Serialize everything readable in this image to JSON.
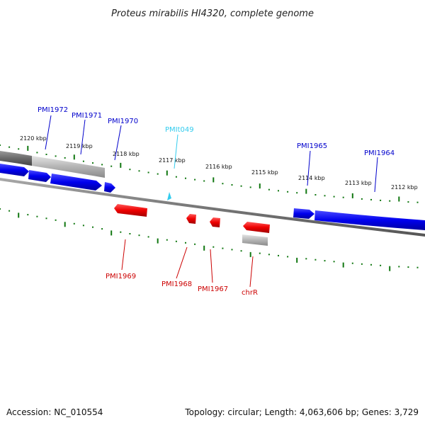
{
  "title": "Proteus mirabilis HI4320, complete genome",
  "footer": {
    "accession": "Accession: NC_010554",
    "summary": "Topology: circular; Length: 4,063,606 bp; Genes: 3,729"
  },
  "colors": {
    "forward_gene": "#0000ee",
    "reverse_gene": "#ee0000",
    "trna": "#33ccee",
    "tick": "#117711",
    "backbone": "#777777"
  },
  "scale": {
    "unit": "kbp",
    "major_ticks": [
      {
        "pos": 2120,
        "label": "2120 kbp"
      },
      {
        "pos": 2119,
        "label": "2119 kbp"
      },
      {
        "pos": 2118,
        "label": "2118 kbp"
      },
      {
        "pos": 2117,
        "label": "2117 kbp"
      },
      {
        "pos": 2116,
        "label": "2116 kbp"
      },
      {
        "pos": 2115,
        "label": "2115 kbp"
      },
      {
        "pos": 2114,
        "label": "2114 kbp"
      },
      {
        "pos": 2113,
        "label": "2113 kbp"
      },
      {
        "pos": 2112,
        "label": "2112 kbp"
      }
    ]
  },
  "genes": [
    {
      "name": "PMI1972",
      "label": "PMI1972",
      "strand": "forward",
      "type": "gene"
    },
    {
      "name": "PMI1971",
      "label": "PMI1971",
      "strand": "forward",
      "type": "gene"
    },
    {
      "name": "PMI1970",
      "label": "PMI1970",
      "strand": "forward",
      "type": "gene"
    },
    {
      "name": "PMIt049",
      "label": "PMIt049",
      "strand": "forward",
      "type": "trna"
    },
    {
      "name": "PMI1965",
      "label": "PMI1965",
      "strand": "forward",
      "type": "gene"
    },
    {
      "name": "PMI1964",
      "label": "PMI1964",
      "strand": "forward",
      "type": "gene"
    },
    {
      "name": "PMI1969",
      "label": "PMI1969",
      "strand": "reverse",
      "type": "gene"
    },
    {
      "name": "PMI1968",
      "label": "PMI1968",
      "strand": "reverse",
      "type": "gene"
    },
    {
      "name": "PMI1967",
      "label": "PMI1967",
      "strand": "reverse",
      "type": "gene"
    },
    {
      "name": "chrR",
      "label": "chrR",
      "strand": "reverse",
      "type": "gene"
    }
  ]
}
